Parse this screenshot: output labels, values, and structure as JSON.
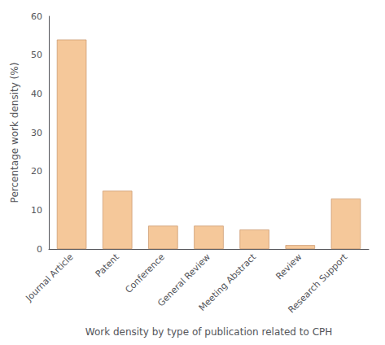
{
  "chart_data": {
    "type": "bar",
    "categories": [
      "Journal Article",
      "Patent",
      "Conference",
      "General Review",
      "Meeting Abstract",
      "Review",
      "Research Support"
    ],
    "values": [
      54.0,
      15.0,
      6.0,
      6.0,
      5.0,
      1.0,
      13.0
    ],
    "color": "#F5C89A",
    "xlabel": "Work density by type of publication related to CPH",
    "ylabel": "Percentage work density (%)",
    "ylim": [
      0,
      60
    ],
    "yticks": [
      0,
      10,
      20,
      30,
      40,
      50,
      60
    ],
    "grid": false
  }
}
